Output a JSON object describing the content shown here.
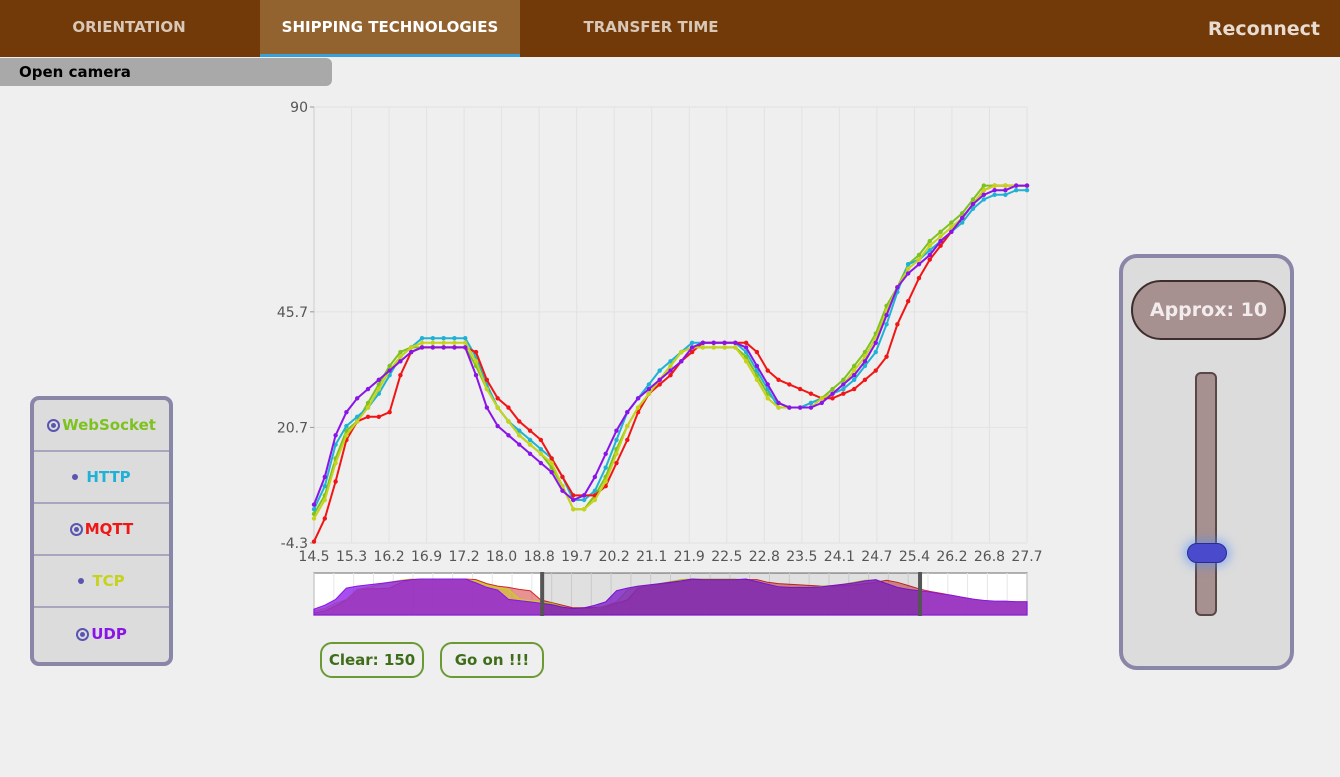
{
  "nav": {
    "tabs": [
      {
        "label": "ORIENTATION",
        "active": false
      },
      {
        "label": "SHIPPING TECHNOLOGIES",
        "active": true
      },
      {
        "label": "TRANSFER TIME",
        "active": false
      }
    ],
    "reconnect_label": "Reconnect"
  },
  "camera": {
    "label": "Open camera"
  },
  "protocols": [
    {
      "name": "WebSocket",
      "color": "#7dc21e",
      "marker": "ring"
    },
    {
      "name": "HTTP",
      "color": "#1fb2d6",
      "marker": "dot"
    },
    {
      "name": "MQTT",
      "color": "#f01616",
      "marker": "ring"
    },
    {
      "name": "TCP",
      "color": "#c6d31a",
      "marker": "dot"
    },
    {
      "name": "UDP",
      "color": "#8a14e8",
      "marker": "ring"
    }
  ],
  "controls": {
    "clear_label": "Clear: 150",
    "go_label": "Go on !!!"
  },
  "slider": {
    "approx_label": "Approx: 10",
    "value_fraction": 0.74
  },
  "chart_data": {
    "type": "line",
    "y_ticks": [
      "90",
      "45.7",
      "20.7",
      "-4.3"
    ],
    "x_ticks": [
      "14.5",
      "15.3",
      "16.2",
      "16.9",
      "17.2",
      "18.0",
      "18.8",
      "19.7",
      "20.2",
      "21.1",
      "21.9",
      "22.5",
      "22.8",
      "23.5",
      "24.1",
      "24.7",
      "25.4",
      "26.2",
      "26.8",
      "27.7"
    ],
    "ylim": [
      -4.3,
      90
    ],
    "x": [
      14.5,
      14.7,
      14.9,
      15.1,
      15.3,
      15.5,
      15.7,
      15.9,
      16.1,
      16.3,
      16.5,
      16.7,
      16.9,
      17.1,
      17.3,
      17.5,
      17.7,
      17.9,
      18.1,
      18.3,
      18.5,
      18.7,
      18.9,
      19.1,
      19.3,
      19.5,
      19.7,
      19.9,
      20.1,
      20.3,
      20.5,
      20.7,
      20.9,
      21.1,
      21.3,
      21.5,
      21.7,
      21.9,
      22.1,
      22.3,
      22.5,
      22.7,
      22.9,
      23.1,
      23.3,
      23.5,
      23.7,
      23.9,
      24.1,
      24.3,
      24.5,
      24.7,
      24.9,
      25.1,
      25.3,
      25.5,
      25.7,
      25.9,
      26.1,
      26.3,
      26.5,
      26.7,
      26.9,
      27.1,
      27.3,
      27.5,
      27.7
    ],
    "series": [
      {
        "name": "WebSocket",
        "color": "#7dc21e",
        "values": [
          2,
          6,
          14,
          20,
          22,
          26,
          30,
          34,
          37,
          38,
          38,
          38,
          38,
          38,
          38,
          34,
          29,
          25,
          22,
          19,
          17,
          15,
          12,
          8,
          3,
          3,
          6,
          10,
          16,
          21,
          25,
          28,
          31,
          34,
          37,
          38,
          38,
          38,
          38,
          38,
          36,
          32,
          28,
          26,
          25,
          25,
          26,
          27,
          29,
          31,
          34,
          37,
          41,
          47,
          51,
          56,
          58,
          61,
          63,
          65,
          67,
          70,
          73,
          73,
          73,
          73,
          73
        ]
      },
      {
        "name": "HTTP",
        "color": "#1fb2d6",
        "values": [
          3,
          8,
          17,
          21,
          23,
          25,
          28,
          32,
          36,
          38,
          40,
          40,
          40,
          40,
          40,
          36,
          30,
          25,
          22,
          20,
          18,
          16,
          14,
          10,
          5,
          5,
          7,
          12,
          18,
          24,
          27,
          30,
          33,
          35,
          37,
          39,
          39,
          39,
          39,
          39,
          37,
          33,
          29,
          25,
          25,
          25,
          26,
          27,
          28,
          29,
          31,
          34,
          37,
          43,
          50,
          56,
          57,
          59,
          61,
          63,
          65,
          68,
          70,
          71,
          71,
          72,
          72
        ]
      },
      {
        "name": "MQTT",
        "color": "#f01616",
        "values": [
          -4,
          1,
          9,
          18,
          22,
          23,
          23,
          24,
          32,
          37,
          38,
          38,
          38,
          38,
          38,
          37,
          31,
          27,
          25,
          22,
          20,
          18,
          14,
          10,
          6,
          6,
          6,
          8,
          13,
          18,
          24,
          28,
          30,
          32,
          35,
          37,
          39,
          39,
          39,
          39,
          39,
          37,
          33,
          31,
          30,
          29,
          28,
          27,
          27,
          28,
          29,
          31,
          33,
          36,
          43,
          48,
          53,
          57,
          60,
          63,
          66,
          69,
          72,
          73,
          73,
          73,
          73
        ]
      },
      {
        "name": "TCP",
        "color": "#c6d31a",
        "values": [
          1,
          5,
          13,
          19,
          22,
          25,
          29,
          33,
          36,
          38,
          39,
          39,
          39,
          39,
          39,
          35,
          29,
          25,
          22,
          19,
          17,
          15,
          13,
          8,
          3,
          3,
          5,
          9,
          15,
          21,
          25,
          28,
          31,
          34,
          37,
          38,
          38,
          38,
          38,
          38,
          35,
          31,
          27,
          25,
          25,
          25,
          25,
          27,
          28,
          30,
          33,
          36,
          40,
          46,
          51,
          55,
          57,
          60,
          62,
          64,
          66,
          69,
          72,
          73,
          73,
          73,
          73
        ]
      },
      {
        "name": "UDP",
        "color": "#8a14e8",
        "values": [
          4,
          10,
          19,
          24,
          27,
          29,
          31,
          33,
          35,
          37,
          38,
          38,
          38,
          38,
          38,
          32,
          25,
          21,
          19,
          17,
          15,
          13,
          11,
          7,
          5,
          6,
          10,
          15,
          20,
          24,
          27,
          29,
          31,
          33,
          35,
          38,
          39,
          39,
          39,
          39,
          38,
          34,
          30,
          26,
          25,
          25,
          25,
          26,
          28,
          30,
          32,
          35,
          39,
          45,
          51,
          54,
          56,
          58,
          61,
          63,
          66,
          69,
          71,
          72,
          72,
          73,
          73
        ]
      }
    ],
    "navigator_window": [
      0.32,
      0.85
    ],
    "legend": "none"
  }
}
